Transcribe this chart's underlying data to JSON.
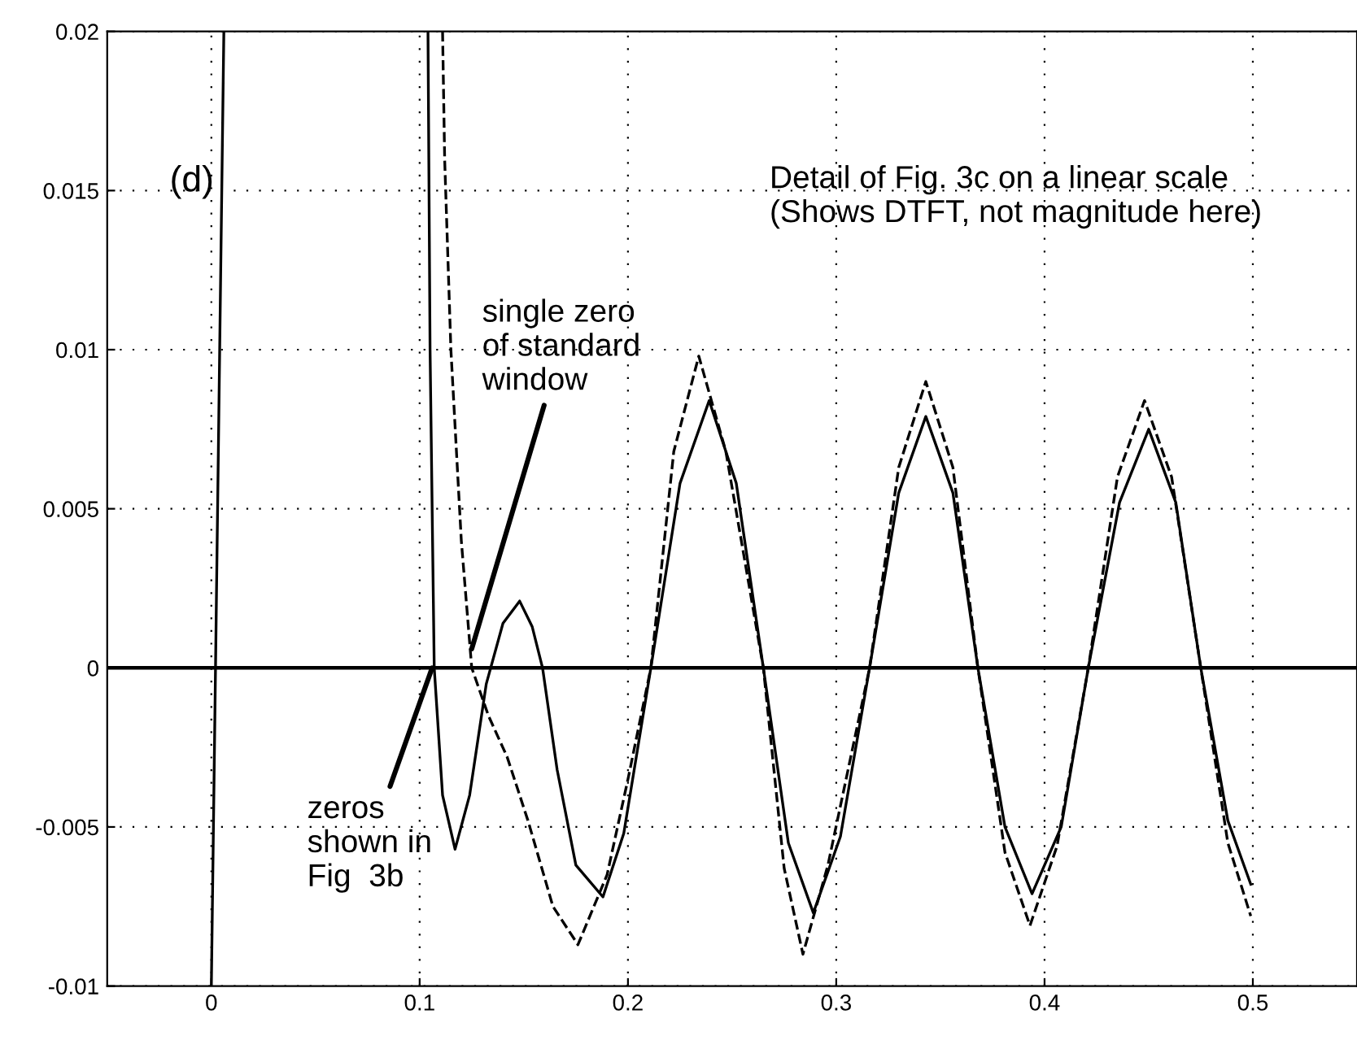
{
  "chart_data": {
    "type": "line",
    "series": [
      {
        "color": "#000000",
        "line_style": "solid",
        "x": [
          0.0,
          0.006,
          null,
          0.104,
          0.105,
          0.107,
          0.111,
          0.117,
          0.124,
          0.132,
          0.14,
          0.148,
          0.154,
          0.159,
          0.166,
          0.175,
          0.188,
          0.198,
          0.211,
          0.225,
          0.239,
          0.252,
          0.265,
          0.277,
          0.289,
          0.302,
          0.316,
          0.33,
          0.343,
          0.356,
          0.368,
          0.381,
          0.394,
          0.408,
          0.421,
          0.436,
          0.45,
          0.463,
          0.475,
          0.488,
          0.499
        ],
        "values": [
          -0.01,
          0.02,
          null,
          0.02,
          0.01,
          0.0,
          -0.004,
          -0.0057,
          -0.004,
          -0.0005,
          0.0014,
          0.0021,
          0.0013,
          0.0,
          -0.0032,
          -0.0062,
          -0.0072,
          -0.0052,
          0.0,
          0.0058,
          0.0084,
          0.0058,
          0.0,
          -0.0055,
          -0.0077,
          -0.0053,
          0.0,
          0.0055,
          0.0079,
          0.0055,
          0.0,
          -0.005,
          -0.0071,
          -0.005,
          0.0,
          0.0052,
          0.0075,
          0.0052,
          0.0,
          -0.0048,
          -0.0068
        ]
      },
      {
        "color": "#000000",
        "line_style": "dashed",
        "x": [
          0.111,
          0.112,
          0.115,
          0.12,
          0.125,
          0.133,
          0.142,
          0.152,
          0.164,
          0.176,
          0.19,
          0.2,
          0.211,
          0.222,
          0.234,
          0.247,
          0.265,
          0.275,
          0.284,
          0.296,
          0.316,
          0.33,
          0.343,
          0.356,
          0.368,
          0.381,
          0.393,
          0.406,
          0.421,
          0.435,
          0.448,
          0.461,
          0.475,
          0.488,
          0.499
        ],
        "values": [
          0.02,
          0.016,
          0.01,
          0.004,
          0.0,
          -0.0015,
          -0.0028,
          -0.0048,
          -0.0075,
          -0.0087,
          -0.0065,
          -0.0035,
          0.0,
          0.0068,
          0.0098,
          0.0068,
          0.0,
          -0.0063,
          -0.009,
          -0.0062,
          0.0,
          0.0063,
          0.009,
          0.0063,
          0.0,
          -0.0058,
          -0.0081,
          -0.0056,
          0.0,
          0.006,
          0.0084,
          0.006,
          0.0,
          -0.0055,
          -0.0078
        ]
      }
    ],
    "xlim": [
      -0.05,
      0.55
    ],
    "ylim": [
      -0.01,
      0.02
    ],
    "xticks": [
      0,
      0.1,
      0.2,
      0.3,
      0.4,
      0.5
    ],
    "yticks": [
      -0.01,
      -0.005,
      0,
      0.005,
      0.01,
      0.015,
      0.02
    ],
    "grid": true,
    "ref_lines": [
      {
        "axis": "y",
        "value": 0,
        "color": "#000000"
      }
    ],
    "annotations": [
      "(d)",
      "Detail of Fig. 3c on a linear scale\n(Shows DTFT, not magnitude here)",
      {
        "text": "single zero\nof standard\nwindow",
        "x": 0.125,
        "y": 0.0006
      },
      {
        "text": "zeros\nshown in\nFig  3b",
        "x": 0.106,
        "y": 0.0
      }
    ]
  }
}
